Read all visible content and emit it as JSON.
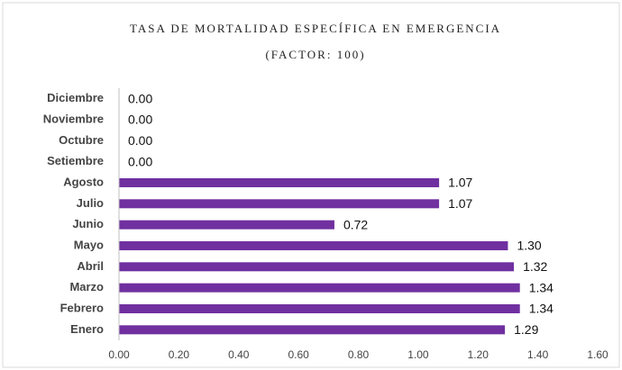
{
  "chart_data": {
    "type": "bar",
    "orientation": "horizontal",
    "title": "TASA DE MORTALIDAD ESPECÍFICA EN EMERGENCIA",
    "subtitle": "(FACTOR: 100)",
    "categories": [
      "Enero",
      "Febrero",
      "Marzo",
      "Abril",
      "Mayo",
      "Junio",
      "Julio",
      "Agosto",
      "Setiembre",
      "Octubre",
      "Noviembre",
      "Diciembre"
    ],
    "values": [
      1.29,
      1.34,
      1.34,
      1.32,
      1.3,
      0.72,
      1.07,
      1.07,
      0,
      0,
      0,
      0
    ],
    "value_labels": [
      "1.29",
      "1.34",
      "1.34",
      "1.32",
      "1.30",
      "0.72",
      "1.07",
      "1.07",
      "0.00",
      "0.00",
      "0.00",
      "0.00"
    ],
    "color": "#7030a0",
    "xlim": [
      0,
      1.6
    ],
    "xticks": [
      {
        "value": 0,
        "label": "0.00"
      },
      {
        "value": 0.2,
        "label": "0.20"
      },
      {
        "value": 0.4,
        "label": "0.40"
      },
      {
        "value": 0.6,
        "label": "0.60"
      },
      {
        "value": 0.8,
        "label": "0.80"
      },
      {
        "value": 1.0,
        "label": "1.00"
      },
      {
        "value": 1.2,
        "label": "1.20"
      },
      {
        "value": 1.4,
        "label": "1.40"
      },
      {
        "value": 1.6,
        "label": "1.60"
      }
    ],
    "grid": false
  }
}
